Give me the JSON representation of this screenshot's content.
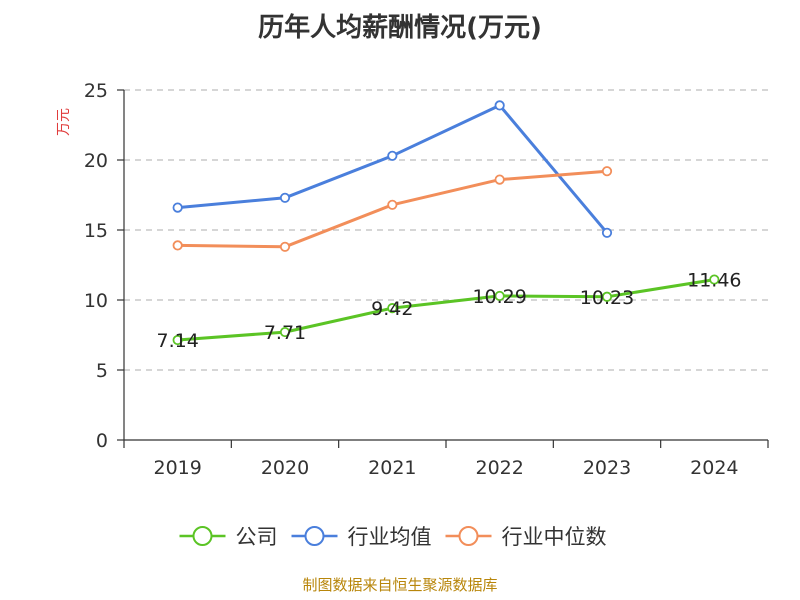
{
  "chart_data": {
    "type": "line",
    "title": "历年人均薪酬情况(万元)",
    "ylabel": "万元",
    "xlabel": "",
    "categories": [
      "2019",
      "2020",
      "2021",
      "2022",
      "2023",
      "2024"
    ],
    "ylim": [
      0,
      25
    ],
    "yticks": [
      0,
      5,
      10,
      15,
      20,
      25
    ],
    "grid": true,
    "legend_position": "bottom",
    "series": [
      {
        "name": "公司",
        "color": "#5bc425",
        "values": [
          7.14,
          7.71,
          9.42,
          10.29,
          10.23,
          11.46
        ],
        "labels": [
          "7.14",
          "7.71",
          "9.42",
          "10.29",
          "10.23",
          "11.46"
        ]
      },
      {
        "name": "行业均值",
        "color": "#4a7fdc",
        "values": [
          16.6,
          17.3,
          20.3,
          23.9,
          14.8,
          null
        ],
        "labels": null
      },
      {
        "name": "行业中位数",
        "color": "#f28e5a",
        "values": [
          13.9,
          13.8,
          16.8,
          18.6,
          19.2,
          null
        ],
        "labels": null
      }
    ]
  },
  "footer": {
    "source": "制图数据来自恒生聚源数据库"
  }
}
